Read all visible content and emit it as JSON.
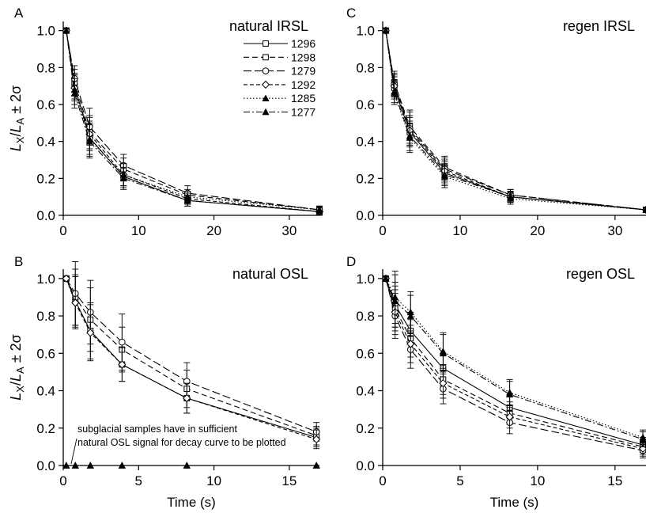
{
  "legend": {
    "entries": [
      {
        "name": "1296",
        "dash": "",
        "marker": "square-open"
      },
      {
        "name": "1298",
        "dash": "7,4",
        "marker": "square-open"
      },
      {
        "name": "1279",
        "dash": "10,4",
        "marker": "circle-open"
      },
      {
        "name": "1292",
        "dash": "5,3",
        "marker": "diamond-open"
      },
      {
        "name": "1285",
        "dash": "1.5,2.5",
        "marker": "triangle-filled"
      },
      {
        "name": "1277",
        "dash": "8,3,2,3",
        "marker": "triangle-filled"
      }
    ]
  },
  "chart_data": [
    {
      "panel": "A",
      "type": "line",
      "title": "natural IRSL",
      "xlabel": "",
      "ylabel": "LX/LA ± 2σ",
      "xlim": [
        0,
        34
      ],
      "ylim": [
        0,
        1.05
      ],
      "xticks": [
        0,
        10,
        20,
        30
      ],
      "yticks": [
        0.0,
        0.2,
        0.4,
        0.6,
        0.8,
        1.0
      ],
      "x": [
        0.4,
        1.5,
        3.5,
        8,
        16.5,
        34
      ],
      "series": [
        {
          "name": "1296",
          "values": [
            1.0,
            0.7,
            0.42,
            0.21,
            0.08,
            0.02
          ],
          "err": [
            0,
            0.07,
            0.09,
            0.06,
            0.03,
            0.02
          ]
        },
        {
          "name": "1298",
          "values": [
            1.0,
            0.72,
            0.45,
            0.25,
            0.11,
            0.03
          ],
          "err": [
            0,
            0.07,
            0.09,
            0.06,
            0.03,
            0.02
          ]
        },
        {
          "name": "1279",
          "values": [
            1.0,
            0.74,
            0.48,
            0.27,
            0.12,
            0.03
          ],
          "err": [
            0,
            0.07,
            0.1,
            0.06,
            0.04,
            0.02
          ]
        },
        {
          "name": "1292",
          "values": [
            1.0,
            0.69,
            0.44,
            0.22,
            0.09,
            0.02
          ],
          "err": [
            0,
            0.07,
            0.09,
            0.06,
            0.03,
            0.02
          ]
        },
        {
          "name": "1285",
          "values": [
            1.0,
            0.68,
            0.41,
            0.22,
            0.1,
            0.03
          ],
          "err": [
            0,
            0.08,
            0.09,
            0.06,
            0.03,
            0.02
          ]
        },
        {
          "name": "1277",
          "values": [
            1.0,
            0.66,
            0.4,
            0.2,
            0.08,
            0.02
          ],
          "err": [
            0,
            0.08,
            0.09,
            0.06,
            0.03,
            0.02
          ]
        }
      ]
    },
    {
      "panel": "C",
      "type": "line",
      "title": "regen IRSL",
      "xlabel": "",
      "ylabel": "",
      "xlim": [
        0,
        34
      ],
      "ylim": [
        0,
        1.05
      ],
      "xticks": [
        0,
        10,
        20,
        30
      ],
      "yticks": [
        0.0,
        0.2,
        0.4,
        0.6,
        0.8,
        1.0
      ],
      "x": [
        0.4,
        1.5,
        3.5,
        8,
        16.5,
        34
      ],
      "series": [
        {
          "name": "1296",
          "values": [
            1.0,
            0.69,
            0.45,
            0.23,
            0.1,
            0.03
          ],
          "err": [
            0,
            0.06,
            0.08,
            0.06,
            0.03,
            0.01
          ]
        },
        {
          "name": "1298",
          "values": [
            1.0,
            0.72,
            0.48,
            0.26,
            0.11,
            0.03
          ],
          "err": [
            0,
            0.06,
            0.09,
            0.06,
            0.03,
            0.01
          ]
        },
        {
          "name": "1279",
          "values": [
            1.0,
            0.71,
            0.47,
            0.25,
            0.11,
            0.03
          ],
          "err": [
            0,
            0.06,
            0.09,
            0.06,
            0.03,
            0.01
          ]
        },
        {
          "name": "1292",
          "values": [
            1.0,
            0.7,
            0.46,
            0.24,
            0.1,
            0.03
          ],
          "err": [
            0,
            0.06,
            0.08,
            0.06,
            0.03,
            0.01
          ]
        },
        {
          "name": "1285",
          "values": [
            1.0,
            0.66,
            0.42,
            0.21,
            0.09,
            0.03
          ],
          "err": [
            0,
            0.06,
            0.08,
            0.06,
            0.03,
            0.01
          ]
        },
        {
          "name": "1277",
          "values": [
            1.0,
            0.67,
            0.43,
            0.22,
            0.1,
            0.03
          ],
          "err": [
            0,
            0.06,
            0.08,
            0.06,
            0.03,
            0.01
          ]
        }
      ]
    },
    {
      "panel": "B",
      "type": "line",
      "title": "natural OSL",
      "xlabel": "Time (s)",
      "ylabel": "LX/LA ± 2σ",
      "xlim": [
        0,
        17
      ],
      "ylim": [
        0,
        1.05
      ],
      "xticks": [
        0,
        5,
        10,
        15
      ],
      "yticks": [
        0.0,
        0.2,
        0.4,
        0.6,
        0.8,
        1.0
      ],
      "x": [
        0.2,
        0.8,
        1.8,
        3.9,
        8.2,
        16.8
      ],
      "annotation": "subglacial samples have in sufficient natural OSL signal for decay curve to be plotted",
      "series": [
        {
          "name": "1296",
          "values": [
            1.0,
            0.88,
            0.72,
            0.54,
            0.36,
            0.15
          ],
          "err": [
            0,
            0.14,
            0.15,
            0.09,
            0.08,
            0.05
          ]
        },
        {
          "name": "1298",
          "values": [
            1.0,
            0.9,
            0.78,
            0.62,
            0.41,
            0.16
          ],
          "err": [
            0,
            0.15,
            0.17,
            0.12,
            0.1,
            0.05
          ]
        },
        {
          "name": "1279",
          "values": [
            1.0,
            0.92,
            0.82,
            0.66,
            0.45,
            0.18
          ],
          "err": [
            0,
            0.17,
            0.17,
            0.15,
            0.1,
            0.05
          ]
        },
        {
          "name": "1292",
          "values": [
            1.0,
            0.87,
            0.71,
            0.54,
            0.36,
            0.14
          ],
          "err": [
            0,
            0.14,
            0.15,
            0.09,
            0.08,
            0.05
          ]
        },
        {
          "name": "1285",
          "values": [
            0,
            0,
            0,
            0,
            0,
            0
          ],
          "err": [
            0,
            0,
            0,
            0,
            0,
            0
          ]
        },
        {
          "name": "1277",
          "values": [
            0,
            0,
            0,
            0,
            0,
            0
          ],
          "err": [
            0,
            0,
            0,
            0,
            0,
            0
          ]
        }
      ]
    },
    {
      "panel": "D",
      "type": "line",
      "title": "regen OSL",
      "xlabel": "Time (s)",
      "ylabel": "",
      "xlim": [
        0,
        17
      ],
      "ylim": [
        0,
        1.05
      ],
      "xticks": [
        0,
        5,
        10,
        15
      ],
      "yticks": [
        0.0,
        0.2,
        0.4,
        0.6,
        0.8,
        1.0
      ],
      "x": [
        0.2,
        0.8,
        1.8,
        3.9,
        8.2,
        16.8
      ],
      "series": [
        {
          "name": "1296",
          "values": [
            1.0,
            0.86,
            0.72,
            0.52,
            0.31,
            0.11
          ],
          "err": [
            0,
            0.12,
            0.1,
            0.08,
            0.06,
            0.04
          ]
        },
        {
          "name": "1298",
          "values": [
            1.0,
            0.84,
            0.68,
            0.46,
            0.28,
            0.1
          ],
          "err": [
            0,
            0.12,
            0.1,
            0.08,
            0.06,
            0.04
          ]
        },
        {
          "name": "1279",
          "values": [
            1.0,
            0.8,
            0.62,
            0.41,
            0.23,
            0.08
          ],
          "err": [
            0,
            0.12,
            0.1,
            0.08,
            0.06,
            0.04
          ]
        },
        {
          "name": "1292",
          "values": [
            1.0,
            0.82,
            0.65,
            0.44,
            0.26,
            0.09
          ],
          "err": [
            0,
            0.12,
            0.1,
            0.08,
            0.06,
            0.04
          ]
        },
        {
          "name": "1285",
          "values": [
            1.0,
            0.9,
            0.82,
            0.61,
            0.39,
            0.15
          ],
          "err": [
            0,
            0.14,
            0.11,
            0.1,
            0.07,
            0.04
          ]
        },
        {
          "name": "1277",
          "values": [
            1.0,
            0.88,
            0.8,
            0.6,
            0.38,
            0.14
          ],
          "err": [
            0,
            0.14,
            0.11,
            0.1,
            0.07,
            0.04
          ]
        }
      ]
    }
  ]
}
